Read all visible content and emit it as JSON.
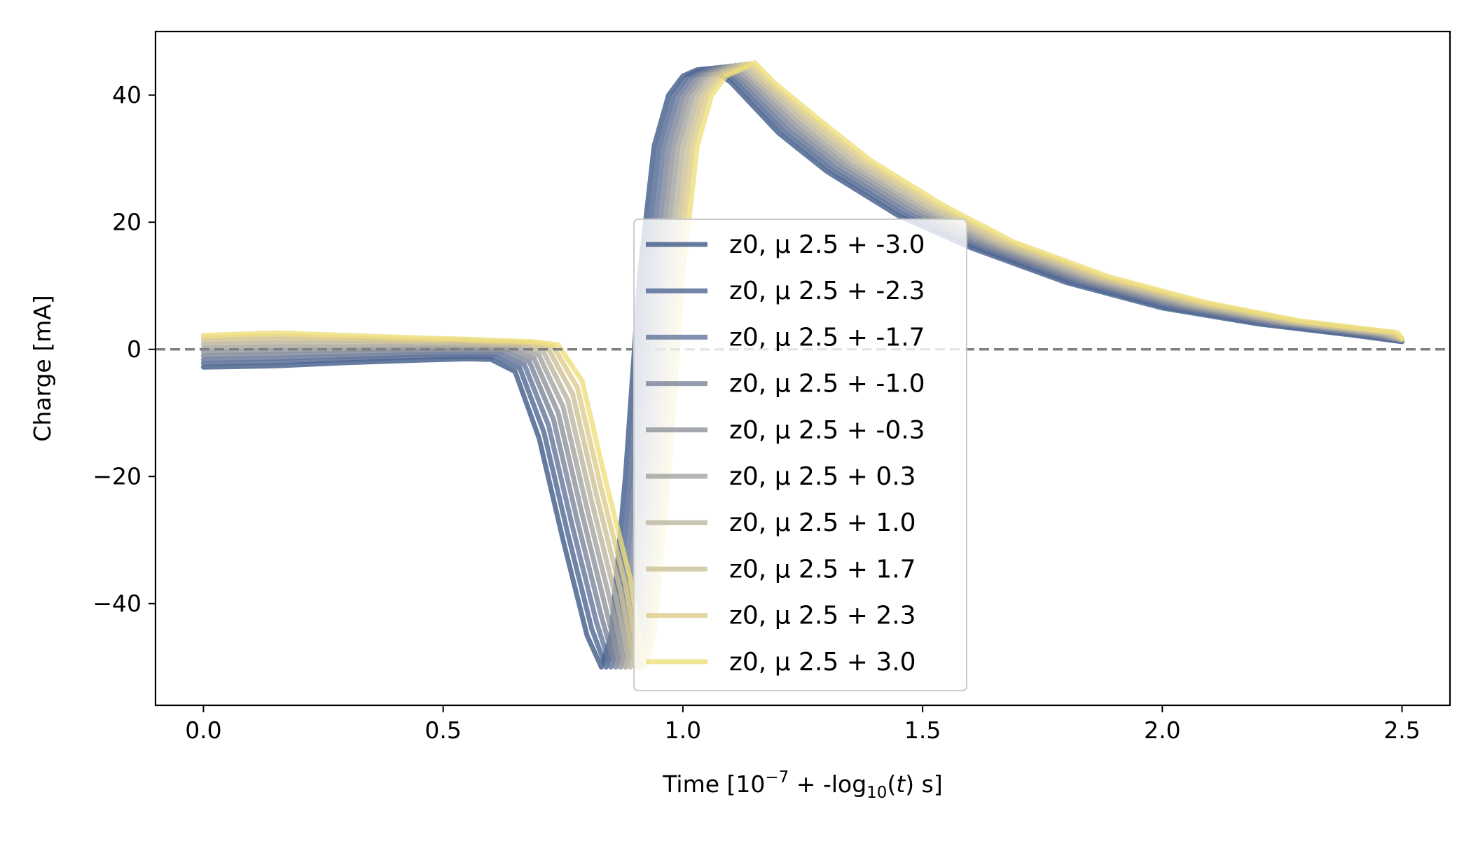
{
  "chart_data": {
    "type": "line",
    "title": "",
    "xlabel": {
      "prefix": "Time [10",
      "exp": "−7",
      "mid": " + -log",
      "sub": "10",
      "paren_open": "(",
      "var": "t",
      "paren_close": ") s]"
    },
    "ylabel": "Charge [mA]",
    "xlim": [
      -0.1,
      2.6
    ],
    "ylim": [
      -56,
      50
    ],
    "xticks": [
      {
        "value": 0.0,
        "label": "0.0"
      },
      {
        "value": 0.5,
        "label": "0.5"
      },
      {
        "value": 1.0,
        "label": "1.0"
      },
      {
        "value": 1.5,
        "label": "1.5"
      },
      {
        "value": 2.0,
        "label": "2.0"
      },
      {
        "value": 2.5,
        "label": "2.5"
      }
    ],
    "yticks": [
      {
        "value": -40,
        "label": "−40"
      },
      {
        "value": -20,
        "label": "−20"
      },
      {
        "value": 0,
        "label": "0"
      },
      {
        "value": 20,
        "label": "20"
      },
      {
        "value": 40,
        "label": "40"
      }
    ],
    "reference_line": {
      "y": 0,
      "style": "dashed",
      "color": "#808080"
    },
    "grid": false,
    "legend_position": "center",
    "series": [
      {
        "name": "z0, μ 2.5 + -3.0",
        "color": "#3f5a88",
        "points": [
          [
            0.0,
            -2.8
          ],
          [
            0.15,
            -2.6
          ],
          [
            0.3,
            -2.1
          ],
          [
            0.45,
            -1.7
          ],
          [
            0.55,
            -1.5
          ],
          [
            0.6,
            -1.6
          ],
          [
            0.65,
            -3.5
          ],
          [
            0.7,
            -14
          ],
          [
            0.75,
            -30
          ],
          [
            0.8,
            -45
          ],
          [
            0.83,
            -50
          ],
          [
            0.85,
            -45
          ],
          [
            0.88,
            -20
          ],
          [
            0.91,
            12
          ],
          [
            0.94,
            32
          ],
          [
            0.97,
            40
          ],
          [
            1.0,
            43
          ],
          [
            1.03,
            44
          ],
          [
            1.06,
            44.2
          ],
          [
            1.1,
            42
          ],
          [
            1.2,
            34
          ],
          [
            1.3,
            28
          ],
          [
            1.45,
            21
          ],
          [
            1.6,
            16
          ],
          [
            1.8,
            10.5
          ],
          [
            2.0,
            6.5
          ],
          [
            2.2,
            4
          ],
          [
            2.4,
            2.2
          ],
          [
            2.5,
            1.2
          ]
        ]
      },
      {
        "name": "z0, μ 2.5 + -2.3",
        "color": "#4f6791",
        "points": [
          [
            0.0,
            -2.2
          ],
          [
            0.15,
            -2.0
          ],
          [
            0.3,
            -1.6
          ],
          [
            0.45,
            -1.2
          ],
          [
            0.55,
            -1.1
          ],
          [
            0.61,
            -1.2
          ],
          [
            0.66,
            -3.0
          ],
          [
            0.71,
            -13
          ],
          [
            0.76,
            -29
          ],
          [
            0.81,
            -44
          ],
          [
            0.84,
            -50
          ],
          [
            0.86,
            -45
          ],
          [
            0.89,
            -20
          ],
          [
            0.92,
            12
          ],
          [
            0.95,
            32
          ],
          [
            0.98,
            40
          ],
          [
            1.01,
            43
          ],
          [
            1.04,
            44
          ],
          [
            1.07,
            44.3
          ],
          [
            1.11,
            42
          ],
          [
            1.21,
            34.2
          ],
          [
            1.31,
            28.2
          ],
          [
            1.46,
            21.2
          ],
          [
            1.61,
            16.1
          ],
          [
            1.81,
            10.6
          ],
          [
            2.01,
            6.6
          ],
          [
            2.21,
            4.05
          ],
          [
            2.41,
            2.25
          ],
          [
            2.5,
            1.3
          ]
        ]
      },
      {
        "name": "z0, μ 2.5 + -1.7",
        "color": "#63749b",
        "points": [
          [
            0.0,
            -1.6
          ],
          [
            0.15,
            -1.4
          ],
          [
            0.3,
            -1.1
          ],
          [
            0.45,
            -0.8
          ],
          [
            0.55,
            -0.7
          ],
          [
            0.62,
            -0.8
          ],
          [
            0.67,
            -2.5
          ],
          [
            0.72,
            -12
          ],
          [
            0.77,
            -28
          ],
          [
            0.82,
            -43
          ],
          [
            0.85,
            -50
          ],
          [
            0.87,
            -45
          ],
          [
            0.9,
            -20
          ],
          [
            0.93,
            12
          ],
          [
            0.96,
            32
          ],
          [
            0.99,
            40
          ],
          [
            1.02,
            43
          ],
          [
            1.05,
            44
          ],
          [
            1.08,
            44.4
          ],
          [
            1.12,
            42
          ],
          [
            1.22,
            34.4
          ],
          [
            1.32,
            28.4
          ],
          [
            1.47,
            21.4
          ],
          [
            1.62,
            16.2
          ],
          [
            1.82,
            10.7
          ],
          [
            2.02,
            6.7
          ],
          [
            2.22,
            4.1
          ],
          [
            2.42,
            2.3
          ],
          [
            2.5,
            1.35
          ]
        ]
      },
      {
        "name": "z0, μ 2.5 + -1.0",
        "color": "#7a8399",
        "points": [
          [
            0.0,
            -1.0
          ],
          [
            0.15,
            -0.8
          ],
          [
            0.3,
            -0.6
          ],
          [
            0.45,
            -0.3
          ],
          [
            0.55,
            -0.2
          ],
          [
            0.63,
            -0.4
          ],
          [
            0.68,
            -2.0
          ],
          [
            0.73,
            -11
          ],
          [
            0.78,
            -27
          ],
          [
            0.83,
            -42
          ],
          [
            0.86,
            -50
          ],
          [
            0.88,
            -45
          ],
          [
            0.91,
            -20
          ],
          [
            0.94,
            12
          ],
          [
            0.97,
            32
          ],
          [
            1.0,
            40
          ],
          [
            1.03,
            43
          ],
          [
            1.06,
            44
          ],
          [
            1.09,
            44.5
          ],
          [
            1.13,
            42
          ],
          [
            1.23,
            34.6
          ],
          [
            1.33,
            28.6
          ],
          [
            1.48,
            21.6
          ],
          [
            1.63,
            16.3
          ],
          [
            1.83,
            10.8
          ],
          [
            2.03,
            6.8
          ],
          [
            2.23,
            4.15
          ],
          [
            2.43,
            2.35
          ],
          [
            2.5,
            1.4
          ]
        ]
      },
      {
        "name": "z0, μ 2.5 + -0.3",
        "color": "#8f929a",
        "points": [
          [
            0.0,
            -0.4
          ],
          [
            0.15,
            -0.2
          ],
          [
            0.3,
            -0.1
          ],
          [
            0.45,
            0.1
          ],
          [
            0.55,
            0.2
          ],
          [
            0.64,
            0.0
          ],
          [
            0.69,
            -1.5
          ],
          [
            0.74,
            -10
          ],
          [
            0.79,
            -26
          ],
          [
            0.84,
            -41
          ],
          [
            0.87,
            -50
          ],
          [
            0.89,
            -45
          ],
          [
            0.92,
            -20
          ],
          [
            0.95,
            12
          ],
          [
            0.98,
            32
          ],
          [
            1.01,
            40
          ],
          [
            1.04,
            43
          ],
          [
            1.07,
            44
          ],
          [
            1.1,
            44.6
          ],
          [
            1.14,
            42
          ],
          [
            1.24,
            34.8
          ],
          [
            1.34,
            28.8
          ],
          [
            1.49,
            21.8
          ],
          [
            1.64,
            16.4
          ],
          [
            1.84,
            10.9
          ],
          [
            2.04,
            6.9
          ],
          [
            2.24,
            4.2
          ],
          [
            2.44,
            2.4
          ],
          [
            2.5,
            1.45
          ]
        ]
      },
      {
        "name": "z0, μ 2.5 + 0.3",
        "color": "#a3a3a0",
        "points": [
          [
            0.0,
            0.2
          ],
          [
            0.15,
            0.4
          ],
          [
            0.3,
            0.4
          ],
          [
            0.45,
            0.5
          ],
          [
            0.55,
            0.5
          ],
          [
            0.65,
            0.3
          ],
          [
            0.7,
            -1.0
          ],
          [
            0.75,
            -9
          ],
          [
            0.8,
            -25
          ],
          [
            0.85,
            -40
          ],
          [
            0.88,
            -50
          ],
          [
            0.9,
            -45
          ],
          [
            0.93,
            -20
          ],
          [
            0.96,
            12
          ],
          [
            0.99,
            32
          ],
          [
            1.02,
            40
          ],
          [
            1.05,
            43
          ],
          [
            1.08,
            44
          ],
          [
            1.11,
            44.7
          ],
          [
            1.15,
            42
          ],
          [
            1.25,
            35
          ],
          [
            1.35,
            29
          ],
          [
            1.5,
            22
          ],
          [
            1.65,
            16.5
          ],
          [
            1.85,
            11
          ],
          [
            2.05,
            7
          ],
          [
            2.25,
            4.25
          ],
          [
            2.45,
            2.45
          ],
          [
            2.5,
            1.5
          ]
        ]
      },
      {
        "name": "z0, μ 2.5 + 1.0",
        "color": "#b9b5a0",
        "points": [
          [
            0.0,
            0.8
          ],
          [
            0.15,
            1.0
          ],
          [
            0.3,
            0.9
          ],
          [
            0.45,
            0.9
          ],
          [
            0.55,
            0.8
          ],
          [
            0.66,
            0.6
          ],
          [
            0.71,
            -0.5
          ],
          [
            0.76,
            -8
          ],
          [
            0.81,
            -24
          ],
          [
            0.86,
            -39
          ],
          [
            0.89,
            -50
          ],
          [
            0.91,
            -45
          ],
          [
            0.94,
            -20
          ],
          [
            0.97,
            12
          ],
          [
            1.0,
            32
          ],
          [
            1.03,
            40
          ],
          [
            1.06,
            43
          ],
          [
            1.09,
            44
          ],
          [
            1.12,
            44.8
          ],
          [
            1.16,
            42
          ],
          [
            1.26,
            35.2
          ],
          [
            1.36,
            29.2
          ],
          [
            1.51,
            22.2
          ],
          [
            1.66,
            16.6
          ],
          [
            1.86,
            11.1
          ],
          [
            2.06,
            7.1
          ],
          [
            2.26,
            4.3
          ],
          [
            2.46,
            2.5
          ],
          [
            2.5,
            1.55
          ]
        ]
      },
      {
        "name": "z0, μ 2.5 + 1.7",
        "color": "#ccc099",
        "points": [
          [
            0.0,
            1.3
          ],
          [
            0.15,
            1.6
          ],
          [
            0.3,
            1.4
          ],
          [
            0.45,
            1.2
          ],
          [
            0.55,
            1.1
          ],
          [
            0.67,
            0.8
          ],
          [
            0.72,
            0.0
          ],
          [
            0.77,
            -7
          ],
          [
            0.82,
            -23
          ],
          [
            0.87,
            -38
          ],
          [
            0.9,
            -50
          ],
          [
            0.92,
            -45
          ],
          [
            0.95,
            -20
          ],
          [
            0.98,
            12
          ],
          [
            1.01,
            32
          ],
          [
            1.04,
            40
          ],
          [
            1.07,
            43
          ],
          [
            1.1,
            44
          ],
          [
            1.13,
            44.9
          ],
          [
            1.17,
            42
          ],
          [
            1.27,
            35.4
          ],
          [
            1.37,
            29.4
          ],
          [
            1.52,
            22.4
          ],
          [
            1.67,
            16.7
          ],
          [
            1.87,
            11.2
          ],
          [
            2.07,
            7.2
          ],
          [
            2.27,
            4.35
          ],
          [
            2.47,
            2.55
          ],
          [
            2.5,
            1.6
          ]
        ]
      },
      {
        "name": "z0, μ 2.5 + 2.3",
        "color": "#ddcc8c",
        "points": [
          [
            0.0,
            1.8
          ],
          [
            0.15,
            2.1
          ],
          [
            0.3,
            1.8
          ],
          [
            0.45,
            1.5
          ],
          [
            0.55,
            1.4
          ],
          [
            0.68,
            1.0
          ],
          [
            0.73,
            0.4
          ],
          [
            0.78,
            -6
          ],
          [
            0.83,
            -22
          ],
          [
            0.88,
            -37
          ],
          [
            0.91,
            -50
          ],
          [
            0.93,
            -45
          ],
          [
            0.96,
            -20
          ],
          [
            0.99,
            12
          ],
          [
            1.02,
            32
          ],
          [
            1.05,
            40
          ],
          [
            1.08,
            43
          ],
          [
            1.11,
            44
          ],
          [
            1.14,
            45
          ],
          [
            1.18,
            42
          ],
          [
            1.28,
            35.6
          ],
          [
            1.38,
            29.6
          ],
          [
            1.53,
            22.6
          ],
          [
            1.68,
            16.8
          ],
          [
            1.88,
            11.3
          ],
          [
            2.08,
            7.3
          ],
          [
            2.28,
            4.4
          ],
          [
            2.48,
            2.6
          ],
          [
            2.5,
            1.65
          ]
        ]
      },
      {
        "name": "z0, μ 2.5 + 3.0",
        "color": "#eedf7c",
        "points": [
          [
            0.0,
            2.2
          ],
          [
            0.15,
            2.6
          ],
          [
            0.3,
            2.2
          ],
          [
            0.45,
            1.8
          ],
          [
            0.55,
            1.6
          ],
          [
            0.69,
            1.2
          ],
          [
            0.74,
            0.7
          ],
          [
            0.79,
            -5
          ],
          [
            0.84,
            -21
          ],
          [
            0.89,
            -36
          ],
          [
            0.92,
            -50
          ],
          [
            0.94,
            -45
          ],
          [
            0.97,
            -20
          ],
          [
            1.0,
            12
          ],
          [
            1.03,
            32
          ],
          [
            1.06,
            40
          ],
          [
            1.09,
            43
          ],
          [
            1.12,
            44
          ],
          [
            1.15,
            45.1
          ],
          [
            1.19,
            42
          ],
          [
            1.29,
            35.8
          ],
          [
            1.39,
            29.8
          ],
          [
            1.54,
            22.8
          ],
          [
            1.69,
            16.9
          ],
          [
            1.89,
            11.4
          ],
          [
            2.09,
            7.4
          ],
          [
            2.29,
            4.45
          ],
          [
            2.49,
            2.65
          ],
          [
            2.5,
            1.7
          ]
        ]
      }
    ]
  }
}
